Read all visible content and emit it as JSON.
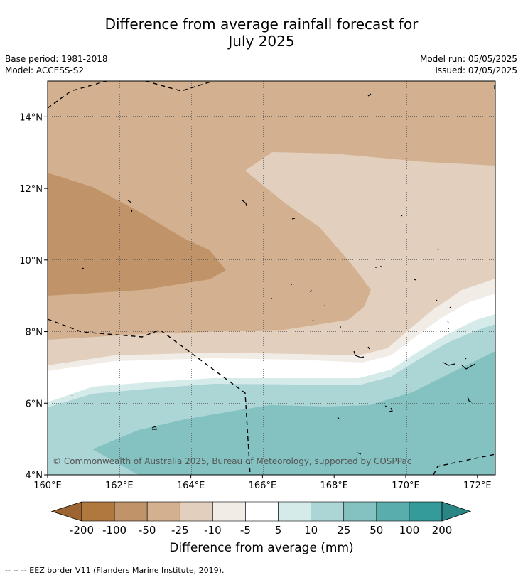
{
  "header": {
    "title_line1": "Difference from average rainfall forecast for",
    "title_line2": "July 2025",
    "base_period": "Base period: 1981-2018",
    "model": "Model: ACCESS-S2",
    "model_run": "Model run: 05/05/2025",
    "issued": "Issued: 07/05/2025"
  },
  "map": {
    "copyright": "© Commonwealth of Australia 2025, Bureau of Meteorology, supported by COSPPac",
    "lon_range": [
      160,
      172.5
    ],
    "lat_range": [
      4,
      15
    ],
    "x_ticks": [
      "160°E",
      "162°E",
      "164°E",
      "166°E",
      "168°E",
      "170°E",
      "172°E"
    ],
    "y_ticks": [
      "4°N",
      "6°N",
      "8°N",
      "10°N",
      "12°N",
      "14°N"
    ],
    "grid": "dotted"
  },
  "colorbar": {
    "title": "Difference from average (mm)",
    "tick_labels": [
      "-200",
      "-100",
      "-50",
      "-25",
      "-10",
      "-5",
      "5",
      "10",
      "25",
      "50",
      "100",
      "200"
    ],
    "colors": [
      "#9c6430",
      "#b0773f",
      "#c09468",
      "#d3b190",
      "#e3cfbd",
      "#f1ece6",
      "#ffffff",
      "#d4ebea",
      "#acd5d5",
      "#84c1c1",
      "#5aadad",
      "#349a9a",
      "#2a8585"
    ]
  },
  "footnote": "--  --  -- EEZ border V11 (Flanders Marine Institute, 2019)."
}
